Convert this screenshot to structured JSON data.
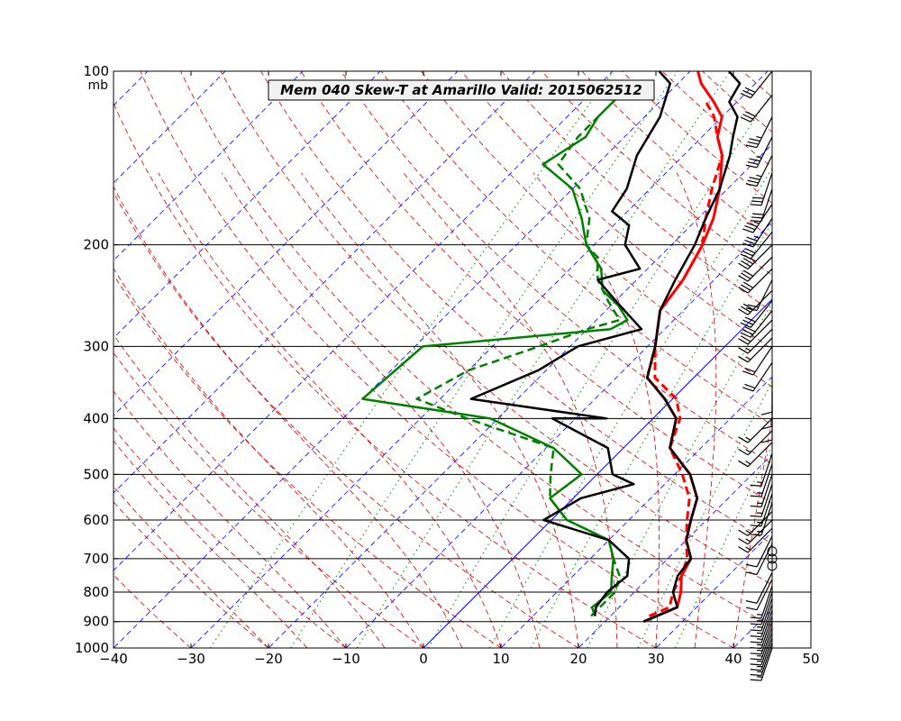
{
  "chart_data": {
    "type": "line",
    "title": "Mem 040  Skew-T at Amarillo   Valid: 2015062512",
    "xlabel": "",
    "ylabel": "",
    "pressure_unit": "mb",
    "xlim": [
      -40,
      50
    ],
    "ylim": [
      1000,
      100
    ],
    "y_scale": "log",
    "xticks": [
      "−40",
      "−30",
      "−20",
      "−10",
      "0",
      "10",
      "20",
      "30",
      "40",
      "50"
    ],
    "yticks": [
      "100",
      "200",
      "300",
      "400",
      "500",
      "600",
      "700",
      "800",
      "900",
      "1000"
    ],
    "background_lines": [
      "isotherms",
      "dry adiabats",
      "moist adiabats",
      "mixing ratio lines",
      "0°C isotherm"
    ],
    "colors": {
      "temperature": "#ff0000",
      "dewpoint": "#008000",
      "member": "#000000",
      "isotherm": "#0000ff",
      "dry_adiabat": "#cc0000",
      "moist_adiabat": "#cc0000",
      "mixing_ratio": "#008000"
    },
    "series": [
      {
        "style": "red-solid",
        "points": [
          [
            25,
            900
          ],
          [
            27.5,
            850
          ],
          [
            26,
            800
          ],
          [
            24,
            750
          ],
          [
            23,
            700
          ],
          [
            20,
            650
          ],
          [
            18,
            600
          ],
          [
            16,
            550
          ],
          [
            12,
            500
          ],
          [
            6,
            450
          ],
          [
            3,
            400
          ],
          [
            -1,
            370
          ],
          [
            -6,
            340
          ],
          [
            -9,
            300
          ],
          [
            -13,
            260
          ],
          [
            -14,
            230
          ],
          [
            -16,
            200
          ],
          [
            -18,
            180
          ],
          [
            -21,
            160
          ],
          [
            -25,
            140
          ],
          [
            -28,
            130
          ],
          [
            -30,
            120
          ],
          [
            -33,
            113
          ],
          [
            -37,
            105
          ],
          [
            -39,
            100
          ]
        ]
      },
      {
        "style": "red-dashed",
        "points": [
          [
            25,
            880
          ],
          [
            26.5,
            850
          ],
          [
            25,
            800
          ],
          [
            24,
            750
          ],
          [
            22.5,
            700
          ],
          [
            20,
            650
          ],
          [
            17.5,
            600
          ],
          [
            15,
            550
          ],
          [
            11,
            500
          ],
          [
            6,
            450
          ],
          [
            3.5,
            400
          ],
          [
            0.5,
            370
          ],
          [
            -5,
            340
          ],
          [
            -9,
            300
          ],
          [
            -13,
            260
          ],
          [
            -14,
            230
          ],
          [
            -16,
            200
          ],
          [
            -19,
            180
          ],
          [
            -22,
            160
          ],
          [
            -25,
            140
          ],
          [
            -28,
            130
          ],
          [
            -31,
            120
          ],
          [
            -34,
            113
          ]
        ]
      },
      {
        "style": "green-solid",
        "points": [
          [
            18,
            880
          ],
          [
            16.5,
            850
          ],
          [
            17,
            800
          ],
          [
            15,
            750
          ],
          [
            13,
            700
          ],
          [
            10,
            650
          ],
          [
            2,
            600
          ],
          [
            -3,
            550
          ],
          [
            -2,
            500
          ],
          [
            -9,
            450
          ],
          [
            -21,
            400
          ],
          [
            -40,
            370
          ],
          [
            -39,
            300
          ],
          [
            -17,
            280
          ],
          [
            -16,
            270
          ],
          [
            -19,
            255
          ],
          [
            -23,
            240
          ],
          [
            -26,
            220
          ],
          [
            -31,
            200
          ],
          [
            -35,
            180
          ],
          [
            -40,
            160
          ],
          [
            -47,
            145
          ],
          [
            -45,
            130
          ],
          [
            -46,
            120
          ],
          [
            -46,
            105
          ]
        ]
      },
      {
        "style": "green-dashed",
        "points": [
          [
            17.5,
            880
          ],
          [
            17.5,
            850
          ],
          [
            17.5,
            800
          ],
          [
            16,
            750
          ],
          [
            13,
            700
          ],
          [
            10,
            650
          ],
          [
            2,
            600
          ],
          [
            -3,
            550
          ],
          [
            -6,
            500
          ],
          [
            -9,
            450
          ],
          [
            -24,
            400
          ],
          [
            -33,
            370
          ],
          [
            -30,
            330
          ],
          [
            -24,
            300
          ],
          [
            -20,
            280
          ],
          [
            -17,
            270
          ],
          [
            -21,
            250
          ],
          [
            -25,
            230
          ],
          [
            -28,
            210
          ],
          [
            -31,
            200
          ],
          [
            -34,
            180
          ],
          [
            -39,
            160
          ],
          [
            -45,
            145
          ],
          [
            -46,
            130
          ],
          [
            -46,
            120
          ]
        ]
      },
      {
        "style": "black-solid",
        "points": [
          [
            18,
            880
          ],
          [
            17,
            850
          ],
          [
            16.5,
            800
          ],
          [
            17,
            750
          ],
          [
            15,
            700
          ],
          [
            10,
            650
          ],
          [
            -1,
            600
          ],
          [
            1,
            550
          ],
          [
            6,
            520
          ],
          [
            2,
            500
          ],
          [
            -2,
            450
          ],
          [
            -13,
            400
          ],
          [
            -6,
            400
          ],
          [
            -26,
            370
          ],
          [
            -21,
            330
          ],
          [
            -19,
            300
          ],
          [
            -13,
            280
          ],
          [
            -20,
            250
          ],
          [
            -25,
            230
          ],
          [
            -21,
            220
          ],
          [
            -26,
            200
          ],
          [
            -28,
            185
          ],
          [
            -32,
            175
          ],
          [
            -33,
            160
          ],
          [
            -36,
            140
          ],
          [
            -38,
            120
          ],
          [
            -41,
            105
          ],
          [
            -44,
            100
          ]
        ]
      },
      {
        "style": "black-solid",
        "points": [
          [
            25,
            900
          ],
          [
            27.5,
            850
          ],
          [
            25,
            800
          ],
          [
            23.5,
            750
          ],
          [
            23,
            700
          ],
          [
            20,
            650
          ],
          [
            18,
            600
          ],
          [
            16,
            550
          ],
          [
            12,
            500
          ],
          [
            6,
            450
          ],
          [
            3,
            400
          ],
          [
            -1,
            370
          ],
          [
            -6,
            340
          ],
          [
            -9,
            300
          ],
          [
            -13,
            260
          ],
          [
            -15,
            230
          ],
          [
            -17,
            200
          ],
          [
            -19,
            180
          ],
          [
            -21,
            160
          ],
          [
            -24,
            140
          ],
          [
            -26,
            130
          ],
          [
            -28,
            120
          ],
          [
            -31,
            113
          ],
          [
            -32,
            105
          ],
          [
            -35,
            100
          ]
        ]
      }
    ],
    "wind_barbs": {
      "pressures": [
        100,
        110,
        120,
        130,
        140,
        150,
        160,
        170,
        180,
        190,
        200,
        210,
        220,
        230,
        240,
        250,
        260,
        270,
        280,
        290,
        300,
        320,
        340,
        360,
        380,
        400,
        420,
        440,
        460,
        480,
        500,
        520,
        540,
        560,
        580,
        600,
        620,
        640,
        660,
        680,
        700,
        720,
        740,
        760,
        780,
        800,
        820,
        840,
        860,
        880,
        900,
        920,
        940,
        960,
        980,
        1000
      ],
      "u": [
        20,
        20,
        15,
        15,
        15,
        10,
        10,
        20,
        20,
        20,
        25,
        20,
        20,
        10,
        20,
        20,
        20,
        15,
        10,
        10,
        10,
        10,
        0,
        0,
        0,
        10,
        10,
        10,
        5,
        5,
        5,
        5,
        5,
        5,
        10,
        10,
        10,
        5,
        5,
        0,
        0,
        0,
        5,
        5,
        5,
        5,
        5,
        5,
        5,
        5,
        5,
        5,
        5,
        5,
        5,
        5
      ],
      "v": [
        25,
        25,
        30,
        30,
        30,
        30,
        30,
        30,
        30,
        25,
        25,
        20,
        20,
        20,
        20,
        25,
        25,
        15,
        10,
        10,
        15,
        15,
        10,
        10,
        10,
        10,
        10,
        10,
        15,
        15,
        15,
        15,
        15,
        15,
        10,
        10,
        10,
        10,
        10,
        0,
        0,
        0,
        10,
        10,
        15,
        15,
        15,
        15,
        15,
        15,
        15,
        15,
        15,
        15,
        15,
        15
      ]
    }
  }
}
